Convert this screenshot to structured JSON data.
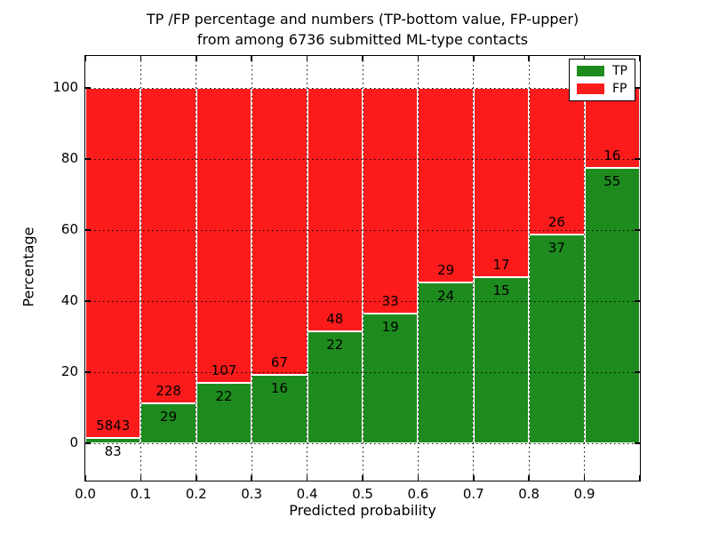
{
  "title_lines": [
    "TP /FP percentage and numbers (TP-bottom value, FP-upper)",
    "from among 6736 submitted ML-type contacts"
  ],
  "chart_data": {
    "type": "bar",
    "stacked": true,
    "normalized": "percent (each 0.1-wide bin stacks to 100%)",
    "title": "TP /FP percentage and numbers (TP-bottom value, FP-upper) from among 6736 submitted ML-type contacts",
    "xlabel": "Predicted probability",
    "ylabel": "Percentage",
    "categories": [
      "0.0-0.1",
      "0.1-0.2",
      "0.2-0.3",
      "0.3-0.4",
      "0.4-0.5",
      "0.5-0.6",
      "0.6-0.7",
      "0.7-0.8",
      "0.8-0.9",
      "0.9-1.0"
    ],
    "x_tick_labels": [
      "0.0",
      "0.1",
      "0.2",
      "0.3",
      "0.4",
      "0.5",
      "0.6",
      "0.7",
      "0.8",
      "0.9"
    ],
    "y_tick_labels": [
      "0",
      "20",
      "40",
      "60",
      "80",
      "100"
    ],
    "y_tick_values": [
      0,
      20,
      40,
      60,
      80,
      100
    ],
    "xlim": [
      0.0,
      1.0
    ],
    "ylim": [
      -11,
      109
    ],
    "grid": "black dotted gridlines drawn on top of bars",
    "legend_position": "upper right",
    "total_contacts": 6736,
    "series": [
      {
        "name": "TP",
        "color": "#1e8b1e",
        "counts": [
          83,
          29,
          22,
          16,
          22,
          19,
          24,
          15,
          37,
          55
        ]
      },
      {
        "name": "FP",
        "color": "#fc1b1b",
        "counts": [
          5843,
          228,
          107,
          67,
          48,
          33,
          29,
          17,
          26,
          16
        ]
      }
    ],
    "tp_percent": [
      1.4,
      11.3,
      17.1,
      19.3,
      31.4,
      36.5,
      45.3,
      46.9,
      58.7,
      77.5
    ],
    "annotation_rule": "FP count printed just above TP/FP boundary, TP count just below"
  }
}
